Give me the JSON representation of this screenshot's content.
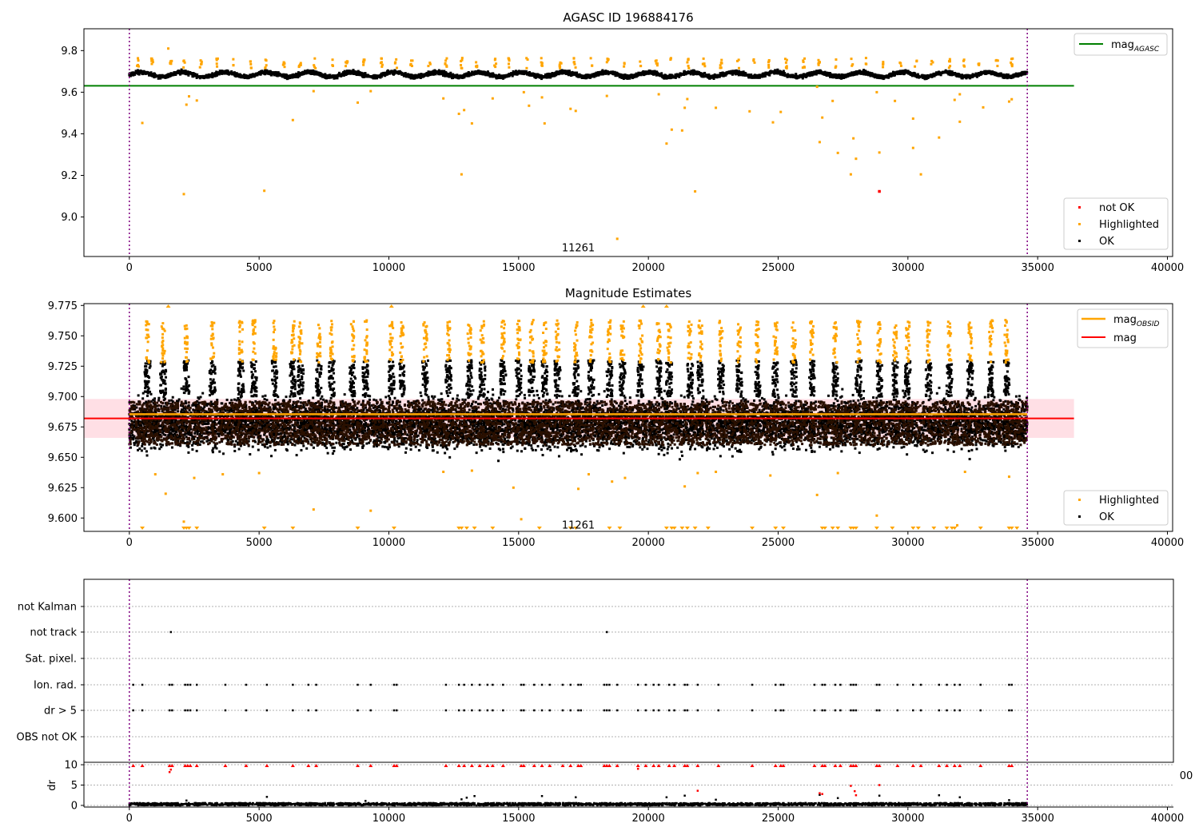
{
  "colors": {
    "ok": "#000000",
    "highlighted": "#ffa500",
    "not_ok": "#ff0000",
    "mag_agasc": "#008000",
    "mag_obsid": "#ffa500",
    "mag": "#ff0000",
    "band": "#ffc0cb",
    "interval_line": "#800080",
    "grid": "#b0b0b0"
  },
  "chart_data": [
    {
      "type": "scatter",
      "title": "AGASC ID 196884176",
      "xlabel": "",
      "ylabel": "",
      "xlim": [
        -1750,
        40200
      ],
      "ylim": [
        8.81,
        9.905
      ],
      "x_ticks": [
        0,
        5000,
        10000,
        15000,
        20000,
        25000,
        30000,
        35000,
        40000
      ],
      "y_ticks": [
        9.0,
        9.2,
        9.4,
        9.6,
        9.8
      ],
      "y_tick_labels": [
        "9.0",
        "9.2",
        "9.4",
        "9.6",
        "9.8"
      ],
      "mag_agasc": 9.631,
      "mag_agasc_x_range": [
        -1750,
        36400
      ],
      "obs_boundaries": [
        0,
        34600
      ],
      "obs_label": {
        "text": "11261",
        "x": 17300,
        "y": 8.85
      },
      "ok_band": {
        "center": 9.685,
        "amplitude": 0.022,
        "noise": 0.012,
        "x_range": [
          0,
          34600
        ]
      },
      "series": [
        {
          "name": "not OK",
          "points": [
            [
              28900,
              9.123
            ]
          ]
        },
        {
          "name": "Highlighted",
          "points": [
            [
              500,
              9.452
            ],
            [
              1500,
              9.81
            ],
            [
              2100,
              9.11
            ],
            [
              2200,
              9.54
            ],
            [
              2300,
              9.58
            ],
            [
              2600,
              9.56
            ],
            [
              5200,
              9.126
            ],
            [
              6300,
              9.466
            ],
            [
              7100,
              9.605
            ],
            [
              8800,
              9.55
            ],
            [
              9300,
              9.605
            ],
            [
              12100,
              9.57
            ],
            [
              12700,
              9.496
            ],
            [
              12800,
              9.205
            ],
            [
              12900,
              9.514
            ],
            [
              13200,
              9.45
            ],
            [
              14000,
              9.57
            ],
            [
              15200,
              9.6
            ],
            [
              15400,
              9.535
            ],
            [
              15900,
              9.575
            ],
            [
              16000,
              9.45
            ],
            [
              17000,
              9.52
            ],
            [
              17200,
              9.51
            ],
            [
              18400,
              9.582
            ],
            [
              18800,
              8.895
            ],
            [
              20400,
              9.59
            ],
            [
              20700,
              9.353
            ],
            [
              20900,
              9.42
            ],
            [
              21300,
              9.416
            ],
            [
              21400,
              9.525
            ],
            [
              21500,
              9.567
            ],
            [
              21800,
              9.123
            ],
            [
              22600,
              9.525
            ],
            [
              23900,
              9.508
            ],
            [
              24800,
              9.455
            ],
            [
              25100,
              9.505
            ],
            [
              26500,
              9.626
            ],
            [
              26600,
              9.36
            ],
            [
              26700,
              9.478
            ],
            [
              27100,
              9.558
            ],
            [
              27300,
              9.308
            ],
            [
              27800,
              9.205
            ],
            [
              28000,
              9.28
            ],
            [
              27900,
              9.378
            ],
            [
              28800,
              9.6
            ],
            [
              28900,
              9.31
            ],
            [
              29500,
              9.558
            ],
            [
              30200,
              9.332
            ],
            [
              30200,
              9.473
            ],
            [
              30500,
              9.205
            ],
            [
              31200,
              9.382
            ],
            [
              31800,
              9.563
            ],
            [
              32000,
              9.458
            ],
            [
              32000,
              9.59
            ],
            [
              32900,
              9.527
            ],
            [
              33900,
              9.555
            ],
            [
              34000,
              9.566
            ]
          ]
        },
        {
          "name": "OK",
          "points": []
        }
      ],
      "legends": [
        {
          "position": "upper right",
          "entries": [
            "mag_AGASC"
          ]
        },
        {
          "position": "lower right",
          "entries": [
            "not OK",
            "Highlighted",
            "OK"
          ]
        }
      ]
    },
    {
      "type": "scatter",
      "title": "Magnitude Estimates",
      "xlabel": "",
      "ylabel": "",
      "xlim": [
        -1750,
        40200
      ],
      "ylim": [
        9.589,
        9.7765
      ],
      "x_ticks": [
        0,
        5000,
        10000,
        15000,
        20000,
        25000,
        30000,
        35000,
        40000
      ],
      "y_ticks": [
        9.6,
        9.625,
        9.65,
        9.675,
        9.7,
        9.725,
        9.75,
        9.775
      ],
      "y_tick_labels": [
        "9.600",
        "9.625",
        "9.650",
        "9.675",
        "9.700",
        "9.725",
        "9.750",
        "9.775"
      ],
      "mag_obsid": 9.6855,
      "mag": 9.682,
      "mag_band": [
        9.666,
        9.698
      ],
      "mag_x_range": [
        -1750,
        36400
      ],
      "obs_boundaries": [
        0,
        34600
      ],
      "obs_label": {
        "text": "11261",
        "x": 17300,
        "y": 9.594
      },
      "ok_band": {
        "center": 9.678,
        "spread": 0.018,
        "x_range": [
          0,
          34600
        ]
      },
      "spike_x": [
        700,
        1300,
        2200,
        3200,
        4300,
        4800,
        5600,
        6300,
        6600,
        7300,
        7800,
        8600,
        9100,
        10100,
        10500,
        11400,
        12300,
        13100,
        13600,
        14400,
        15000,
        15500,
        16000,
        16500,
        17200,
        17800,
        18500,
        19000,
        19700,
        20400,
        20800,
        21600,
        22000,
        22800,
        23500,
        24200,
        24900,
        25600,
        26300,
        27200,
        28100,
        28900,
        29500,
        30000,
        30800,
        31600,
        32400,
        33200,
        33800
      ],
      "series": [
        {
          "name": "Highlighted",
          "points": [
            [
              1000,
              9.636
            ],
            [
              1400,
              9.62
            ],
            [
              2100,
              9.597
            ],
            [
              2500,
              9.633
            ],
            [
              3600,
              9.636
            ],
            [
              5000,
              9.637
            ],
            [
              7100,
              9.607
            ],
            [
              9300,
              9.606
            ],
            [
              12100,
              9.638
            ],
            [
              13200,
              9.639
            ],
            [
              14800,
              9.625
            ],
            [
              15100,
              9.599
            ],
            [
              17300,
              9.624
            ],
            [
              17700,
              9.636
            ],
            [
              18600,
              9.63
            ],
            [
              19100,
              9.633
            ],
            [
              21400,
              9.626
            ],
            [
              21900,
              9.637
            ],
            [
              22600,
              9.638
            ],
            [
              24700,
              9.635
            ],
            [
              26500,
              9.619
            ],
            [
              27300,
              9.637
            ],
            [
              28800,
              9.602
            ],
            [
              31900,
              9.594
            ],
            [
              33900,
              9.634
            ],
            [
              32200,
              9.638
            ]
          ]
        },
        {
          "name": "OK",
          "points": []
        }
      ],
      "clipped_markers_x": [
        500,
        2100,
        2200,
        2300,
        2600,
        5200,
        6300,
        8800,
        10200,
        12700,
        12800,
        13000,
        13300,
        14000,
        15800,
        17000,
        17200,
        18500,
        18900,
        20700,
        20900,
        21000,
        21300,
        21500,
        21800,
        22300,
        24000,
        24900,
        25200,
        26700,
        26800,
        27100,
        27300,
        27800,
        27900,
        28000,
        28800,
        29400,
        30200,
        30400,
        31000,
        31500,
        31700,
        31800,
        32800,
        33900,
        34000,
        34200
      ],
      "clipped_top_x": [
        1500,
        10100,
        19800,
        20700
      ],
      "legends": [
        {
          "position": "upper right",
          "entries": [
            "mag_OBSID",
            "mag"
          ]
        },
        {
          "position": "lower right",
          "entries": [
            "Highlighted",
            "OK"
          ]
        }
      ]
    },
    {
      "type": "scatter",
      "title": "",
      "xlabel": "",
      "ylabel": "",
      "xlim": [
        -1750,
        40200
      ],
      "categories": [
        "not Kalman",
        "not track",
        "Sat. pixel.",
        "Ion. rad.",
        "dr > 5",
        "OBS not OK"
      ],
      "flag_points": {
        "not track": [
          1600,
          18400
        ],
        "Ion. rad.": [
          150,
          500,
          1550,
          1650,
          2150,
          2250,
          2350,
          2600,
          3700,
          4500,
          5300,
          6300,
          6900,
          7200,
          8800,
          9300,
          10200,
          10300,
          12200,
          12700,
          12900,
          13200,
          13500,
          13800,
          14000,
          14400,
          15100,
          15200,
          15600,
          15900,
          16200,
          16700,
          17000,
          17300,
          17400,
          18300,
          18400,
          18500,
          18800,
          19600,
          19900,
          20200,
          20400,
          20800,
          21000,
          21400,
          21500,
          21900,
          22700,
          24000,
          24900,
          25100,
          25200,
          26400,
          26700,
          26800,
          27200,
          27400,
          27800,
          27900,
          28000,
          28800,
          28900,
          29600,
          30200,
          30500,
          31200,
          31500,
          31800,
          32000,
          32800,
          33900,
          34000
        ],
        "dr > 5": [
          150,
          500,
          1550,
          1650,
          2150,
          2250,
          2350,
          2600,
          3700,
          4500,
          5300,
          6300,
          6900,
          7200,
          8800,
          9300,
          10200,
          10300,
          12200,
          12700,
          12900,
          13200,
          13500,
          13800,
          14000,
          14400,
          15100,
          15200,
          15600,
          15900,
          16200,
          16700,
          17000,
          17300,
          17400,
          18300,
          18400,
          18500,
          18800,
          19600,
          19900,
          20200,
          20400,
          20800,
          21000,
          21400,
          21500,
          21900,
          22700,
          24000,
          24900,
          25100,
          25200,
          26400,
          26700,
          26800,
          27200,
          27400,
          27800,
          27900,
          28000,
          28800,
          28900,
          29600,
          30200,
          30500,
          31200,
          31500,
          31800,
          32000,
          32800,
          33900,
          34000
        ]
      },
      "obs_boundaries": [
        0,
        34600
      ]
    },
    {
      "type": "scatter",
      "title": "",
      "xlabel": "",
      "ylabel": "dr",
      "xlim": [
        -1750,
        40200
      ],
      "ylim": [
        -0.4,
        10.6
      ],
      "x_ticks": [
        0,
        5000,
        10000,
        15000,
        20000,
        25000,
        30000,
        35000,
        40000
      ],
      "y_ticks": [
        0,
        5,
        10
      ],
      "obs_boundaries": [
        0,
        34600
      ],
      "stray_tick_label": "00",
      "clipped_markers_x": [
        150,
        500,
        1550,
        1650,
        2150,
        2250,
        2350,
        2600,
        3700,
        4500,
        5300,
        6300,
        6900,
        7200,
        8800,
        9300,
        10200,
        10300,
        12200,
        12700,
        12900,
        13200,
        13500,
        13800,
        14000,
        14400,
        15100,
        15200,
        15600,
        15900,
        16200,
        16700,
        17000,
        17300,
        17400,
        18300,
        18400,
        18500,
        18800,
        19600,
        19900,
        20200,
        20400,
        20800,
        21000,
        21400,
        21500,
        21900,
        22700,
        24000,
        24900,
        25100,
        25200,
        26400,
        26700,
        26800,
        27200,
        27400,
        27800,
        27900,
        28000,
        28800,
        28900,
        29600,
        30200,
        30500,
        31200,
        31500,
        31800,
        32000,
        32800,
        33900,
        34000
      ],
      "series": [
        {
          "name": "not OK",
          "points": [
            [
              1550,
              8.2
            ],
            [
              1600,
              8.8
            ],
            [
              19600,
              9.0
            ],
            [
              21900,
              3.6
            ],
            [
              26600,
              3.0
            ],
            [
              26700,
              2.8
            ],
            [
              27800,
              4.8
            ],
            [
              27950,
              3.5
            ],
            [
              28000,
              2.5
            ],
            [
              28900,
              5.0
            ]
          ]
        },
        {
          "name": "OK",
          "points": [
            [
              5300,
              2.1
            ],
            [
              12800,
              1.5
            ],
            [
              13000,
              1.9
            ],
            [
              13300,
              2.3
            ],
            [
              15900,
              2.3
            ],
            [
              17200,
              2.0
            ],
            [
              20700,
              2.0
            ],
            [
              21400,
              2.4
            ],
            [
              22600,
              1.4
            ],
            [
              26600,
              2.6
            ],
            [
              27300,
              1.8
            ],
            [
              28900,
              2.4
            ],
            [
              31200,
              2.5
            ],
            [
              32000,
              2.0
            ],
            [
              33900,
              1.3
            ],
            [
              2200,
              1.2
            ],
            [
              9100,
              1.1
            ]
          ]
        }
      ]
    }
  ]
}
